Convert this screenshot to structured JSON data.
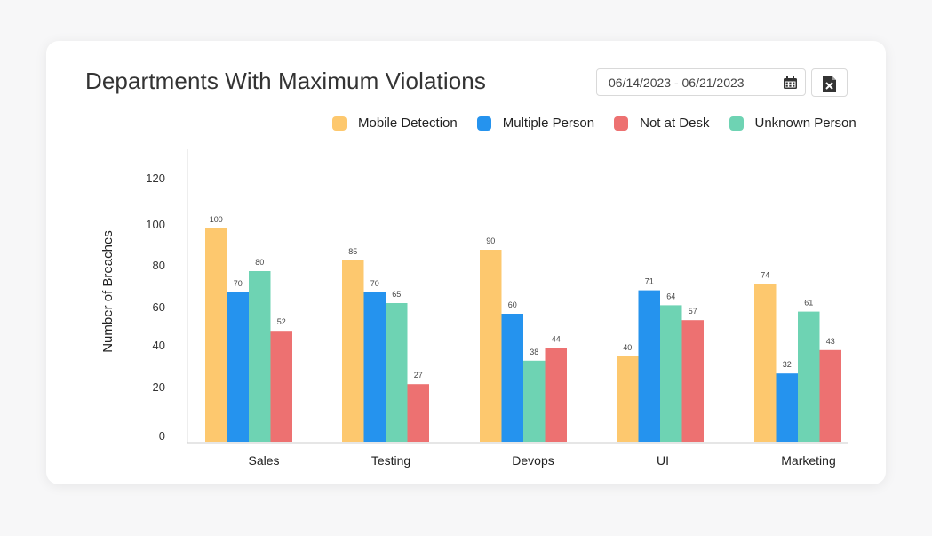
{
  "header": {
    "title": "Departments With Maximum Violations",
    "date_range": "06/14/2023 - 06/21/2023",
    "calendar_icon": "calendar-icon",
    "export_icon": "excel-file-icon"
  },
  "colors": {
    "Mobile Detection": "#fdc86e",
    "Multiple Person": "#2593ee",
    "Not at Desk": "#ed7171",
    "Unknown Person": "#6ed3b3"
  },
  "chart_data": {
    "type": "bar",
    "title": "Departments With Maximum Violations",
    "xlabel": "",
    "ylabel": "Number of Breaches",
    "ylim": [
      0,
      130
    ],
    "yticks": [
      0,
      20,
      40,
      60,
      80,
      100,
      120
    ],
    "grid": false,
    "legend_position": "top-right",
    "legend": [
      "Mobile Detection",
      "Multiple Person",
      "Not at Desk",
      "Unknown Person"
    ],
    "categories": [
      "Sales",
      "Testing",
      "Devops",
      "UI",
      "Marketing"
    ],
    "series": [
      {
        "name": "Mobile Detection",
        "values": [
          100,
          85,
          90,
          40,
          74
        ]
      },
      {
        "name": "Multiple Person",
        "values": [
          70,
          70,
          60,
          71,
          32
        ]
      },
      {
        "name": "Unknown Person",
        "values": [
          80,
          65,
          38,
          64,
          61
        ]
      },
      {
        "name": "Not at Desk",
        "values": [
          52,
          27,
          44,
          57,
          43
        ]
      }
    ]
  }
}
